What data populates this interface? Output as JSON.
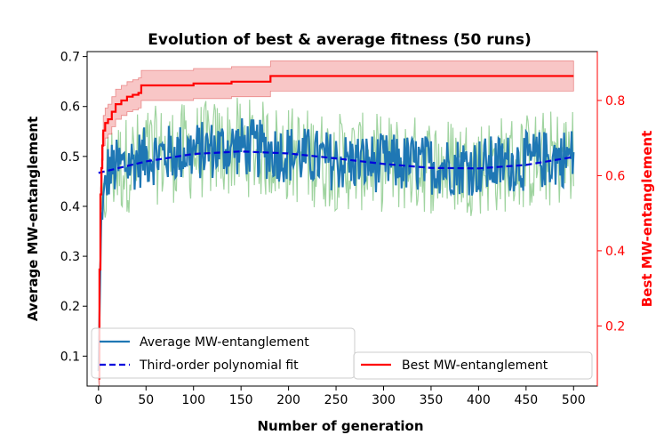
{
  "chart_data": {
    "type": "line",
    "title": "Evolution of best & average fitness (50 runs)",
    "xlabel": "Number of generation",
    "ylabel_left": "Average MW-entanglement",
    "ylabel_right": "Best MW-entanglement",
    "xlim": [
      -12,
      525
    ],
    "ylim_left": [
      0.04,
      0.71
    ],
    "ylim_right": [
      0.04,
      0.93
    ],
    "x_ticks": [
      0,
      50,
      100,
      150,
      200,
      250,
      300,
      350,
      400,
      450,
      500
    ],
    "y_ticks_left": [
      0.1,
      0.2,
      0.3,
      0.4,
      0.5,
      0.6,
      0.7
    ],
    "y_ticks_right": [
      0.2,
      0.4,
      0.6,
      0.8
    ],
    "grid": false,
    "colors": {
      "average": "#1f77b4",
      "average_band": "#2ca02c",
      "fit": "#0000dd",
      "best": "#ff0000",
      "best_band": "#f08080",
      "right_axis": "#ff0000"
    },
    "series": [
      {
        "name": "Average MW-entanglement",
        "axis": "left",
        "style": "noisy-line",
        "x_range": [
          0,
          500
        ],
        "start_value": 0.07,
        "approx_mean": [
          [
            0,
            0.07
          ],
          [
            3,
            0.38
          ],
          [
            10,
            0.47
          ],
          [
            50,
            0.5
          ],
          [
            150,
            0.52
          ],
          [
            250,
            0.49
          ],
          [
            400,
            0.48
          ],
          [
            500,
            0.5
          ]
        ],
        "noise_amplitude": 0.06,
        "band_amplitude": 0.1
      },
      {
        "name": "Third-order polynomial fit",
        "axis": "left",
        "style": "dashed",
        "x": [
          0,
          50,
          100,
          150,
          200,
          250,
          300,
          350,
          400,
          450,
          500
        ],
        "values": [
          0.467,
          0.49,
          0.505,
          0.51,
          0.506,
          0.496,
          0.485,
          0.477,
          0.476,
          0.483,
          0.499
        ]
      },
      {
        "name": "Best MW-entanglement",
        "axis": "right",
        "style": "step",
        "x": [
          0,
          1,
          2,
          3,
          4,
          5,
          7,
          10,
          14,
          18,
          24,
          30,
          36,
          42,
          45,
          60,
          100,
          140,
          180,
          181,
          500
        ],
        "values": [
          0.06,
          0.35,
          0.55,
          0.62,
          0.68,
          0.72,
          0.74,
          0.75,
          0.77,
          0.79,
          0.8,
          0.81,
          0.815,
          0.82,
          0.84,
          0.84,
          0.845,
          0.85,
          0.85,
          0.865,
          0.865
        ],
        "band_upper_offset": 0.04,
        "band_lower_offset": 0.04
      }
    ],
    "legends": [
      {
        "placement": "lower-left",
        "entries": [
          "Average MW-entanglement",
          "Third-order polynomial fit"
        ]
      },
      {
        "placement": "lower-right",
        "entries": [
          "Best MW-entanglement"
        ]
      }
    ]
  }
}
